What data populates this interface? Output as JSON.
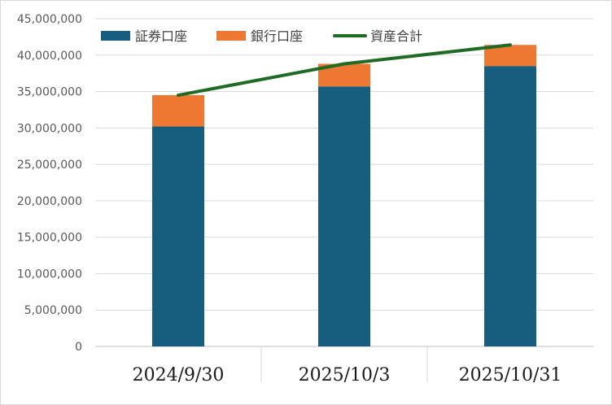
{
  "chart_data": {
    "type": "bar",
    "stacked": true,
    "categories": [
      "2024/9/30",
      "2025/10/3",
      "2025/10/31"
    ],
    "series": [
      {
        "name": "証券口座",
        "kind": "bar",
        "color": "#175E7E",
        "values": [
          30200000,
          35700000,
          38500000
        ]
      },
      {
        "name": "銀行口座",
        "kind": "bar",
        "color": "#EE7731",
        "values": [
          4300000,
          3100000,
          2900000
        ]
      },
      {
        "name": "資産合計",
        "kind": "line",
        "color": "#1E6B24",
        "values": [
          34500000,
          38800000,
          41400000
        ]
      }
    ],
    "ylim": [
      0,
      45000000
    ],
    "yticks": [
      0,
      5000000,
      10000000,
      15000000,
      20000000,
      25000000,
      30000000,
      35000000,
      40000000,
      45000000
    ],
    "ytick_labels": [
      "0",
      "5,000,000",
      "10,000,000",
      "15,000,000",
      "20,000,000",
      "25,000,000",
      "30,000,000",
      "35,000,000",
      "40,000,000",
      "45,000,000"
    ],
    "grid": true,
    "legend": "top-left",
    "title": "",
    "xlabel": "",
    "ylabel": ""
  }
}
